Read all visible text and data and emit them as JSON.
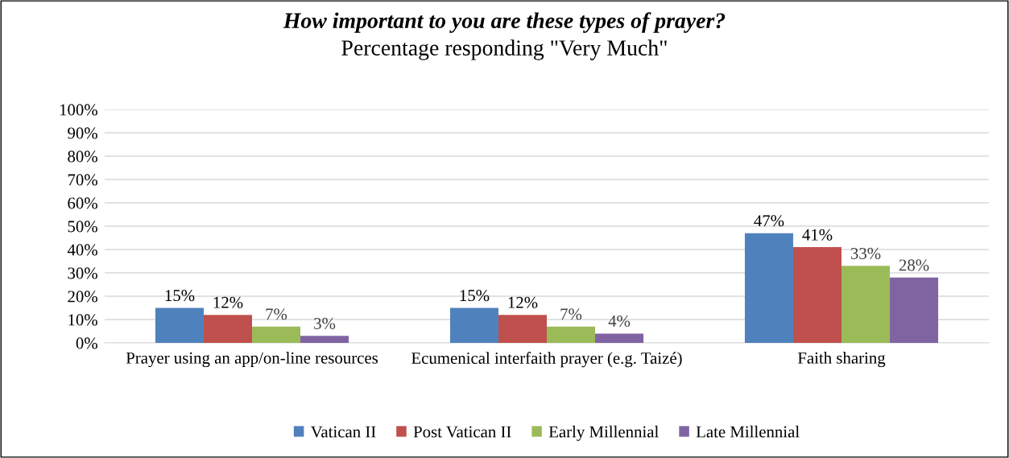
{
  "chart_data": {
    "type": "bar",
    "title": "How important to you are these types of prayer?",
    "subtitle": "Percentage responding \"Very Much\"",
    "categories": [
      "Prayer using an app/on-line resources",
      "Ecumenical interfaith prayer (e.g. Taizé)",
      "Faith sharing"
    ],
    "series": [
      {
        "name": "Vatican II",
        "color": "#4f81bd",
        "values": [
          15,
          15,
          47
        ],
        "value_labels": [
          "15%",
          "15%",
          "47%"
        ]
      },
      {
        "name": "Post Vatican II",
        "color": "#c0504d",
        "values": [
          12,
          12,
          41
        ],
        "value_labels": [
          "12%",
          "12%",
          "41%"
        ]
      },
      {
        "name": "Early Millennial",
        "color": "#9bbb59",
        "values": [
          7,
          7,
          33
        ],
        "value_labels": [
          "7%",
          "7%",
          "33%"
        ]
      },
      {
        "name": "Late Millennial",
        "color": "#8064a2",
        "values": [
          3,
          4,
          28
        ],
        "value_labels": [
          "3%",
          "4%",
          "28%"
        ]
      }
    ],
    "ylim": [
      0,
      100
    ],
    "yticks": [
      {
        "value": 0,
        "label": "0%"
      },
      {
        "value": 10,
        "label": "10%"
      },
      {
        "value": 20,
        "label": "20%"
      },
      {
        "value": 30,
        "label": "30%"
      },
      {
        "value": 40,
        "label": "40%"
      },
      {
        "value": 50,
        "label": "50%"
      },
      {
        "value": 60,
        "label": "60%"
      },
      {
        "value": 70,
        "label": "70%"
      },
      {
        "value": 80,
        "label": "80%"
      },
      {
        "value": 90,
        "label": "90%"
      },
      {
        "value": 100,
        "label": "100%"
      }
    ],
    "grid": "y",
    "legend": "bottom"
  }
}
